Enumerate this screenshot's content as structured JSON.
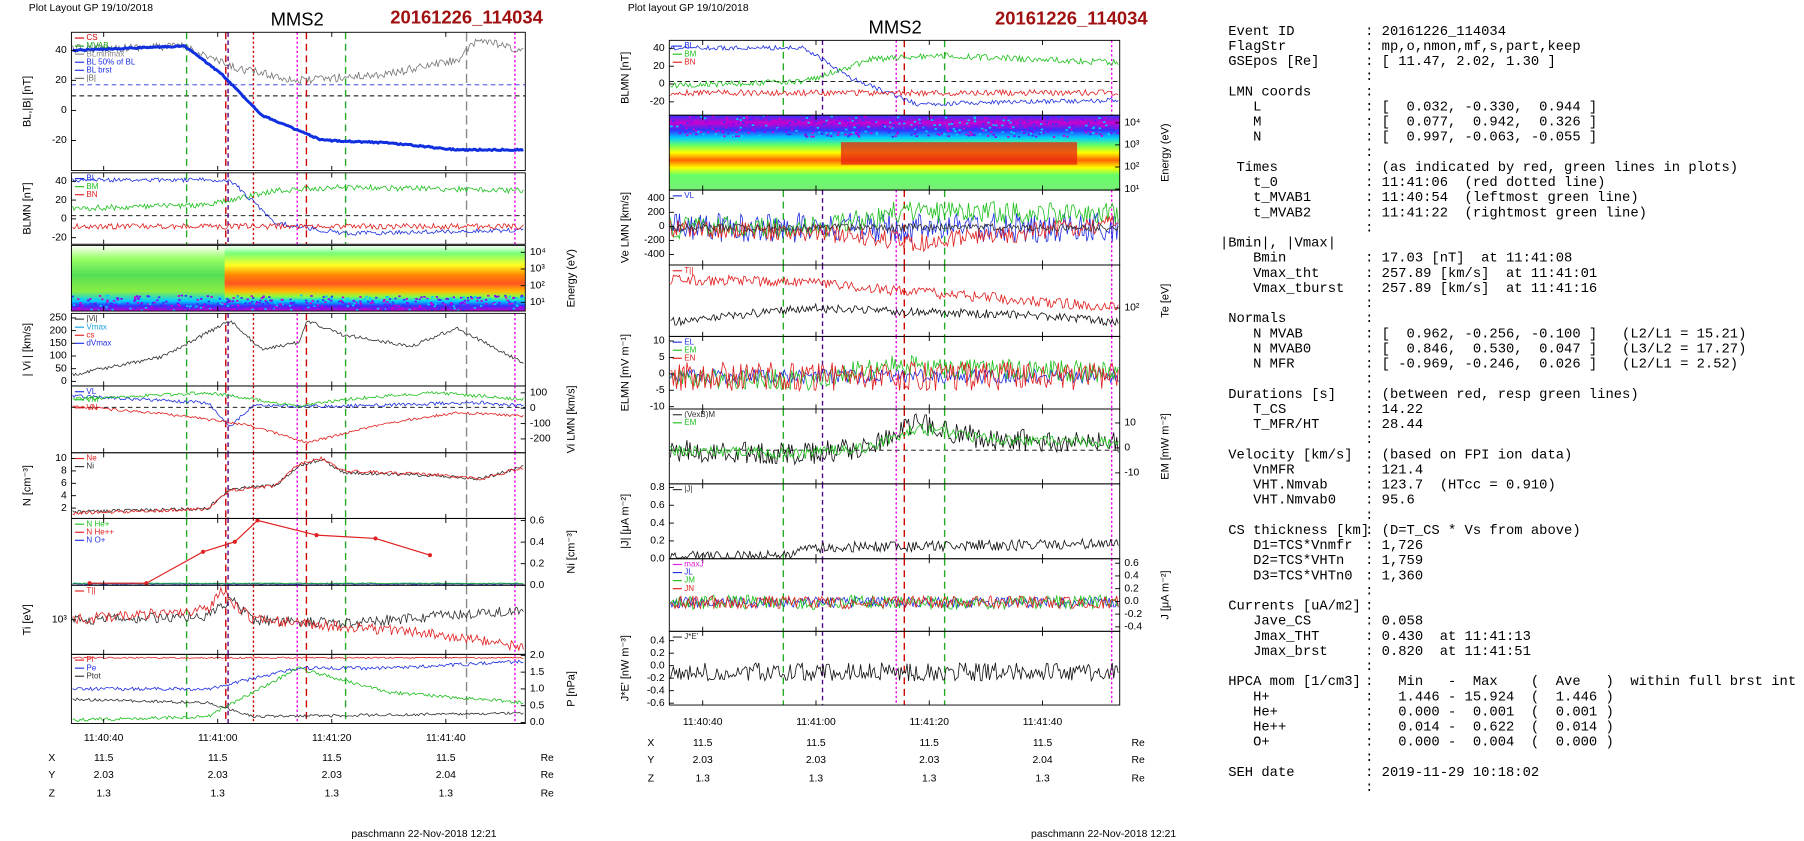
{
  "figures": [
    {
      "header": "Plot Layout GP 19/10/2018",
      "spacecraft": "MMS2",
      "event": "20161226_114034",
      "panels": [
        {
          "ylabel": "BL,|B| [nT]",
          "axis": "left",
          "ylim": [
            -40,
            52
          ],
          "yticks": [
            40,
            20,
            0,
            -20
          ],
          "legend": [
            {
              "name": "CS",
              "color": "#d00000"
            },
            {
              "name": "MVAB",
              "color": "#20a020"
            },
            {
              "name": "BLminmax",
              "color": "#888888"
            },
            {
              "name": "BL 50% of BL",
              "color": "#2030e0"
            },
            {
              "name": "BL brst",
              "color": "#2030e0"
            },
            {
              "name": "|B|",
              "color": "#666666"
            }
          ]
        },
        {
          "ylabel": "BLMN [nT]",
          "axis": "left",
          "ylim": [
            -27,
            49
          ],
          "yticks": [
            40,
            20,
            0,
            -20
          ],
          "legend": [
            {
              "name": "BL",
              "color": "#2030e0"
            },
            {
              "name": "BM",
              "color": "#20c020"
            },
            {
              "name": "BN",
              "color": "#e02020"
            }
          ]
        },
        {
          "ylabel": "Energy (eV)",
          "axis": "right",
          "kind": "spectrogram",
          "log": true,
          "ylim": [
            3,
            26000
          ],
          "yticks": [
            {
              "value": 10000,
              "label": "10⁴"
            },
            {
              "value": 1000,
              "label": "10³"
            },
            {
              "value": 100,
              "label": "10²"
            },
            {
              "value": 10,
              "label": "10¹"
            }
          ]
        },
        {
          "ylabel": "| Vi | [km/s]",
          "axis": "left",
          "ylim": [
            -18,
            268
          ],
          "yticks": [
            250,
            200,
            150,
            100,
            50,
            0
          ],
          "legend": [
            {
              "name": "|Vi|",
              "color": "#333333"
            },
            {
              "name": "Vmax",
              "color": "#20a0e0"
            },
            {
              "name": "cs",
              "color": "#e02020"
            },
            {
              "name": "dVmax",
              "color": "#2030e0"
            }
          ]
        },
        {
          "ylabel": "Vi LMN [km/s]",
          "axis": "right",
          "ylim": [
            -290,
            145
          ],
          "yticks": [
            100,
            0,
            -100,
            -200
          ],
          "legend": [
            {
              "name": "VL",
              "color": "#2030e0"
            },
            {
              "name": "VM",
              "color": "#20c020"
            },
            {
              "name": "VN",
              "color": "#e02020"
            }
          ]
        },
        {
          "ylabel": "N [cm⁻³]",
          "axis": "left",
          "ylim": [
            0.33,
            10.93
          ],
          "yticks": [
            10,
            8,
            6,
            4,
            2
          ],
          "legend": [
            {
              "name": "Ne",
              "color": "#e02020"
            },
            {
              "name": "Ni",
              "color": "#333333"
            }
          ]
        },
        {
          "ylabel": "Ni [cm⁻³]",
          "axis": "right",
          "ylim": [
            0,
            0.62
          ],
          "yticks": [
            0.6,
            0.4,
            0.2,
            {
              "value": 0,
              "label": "0.0"
            }
          ],
          "legend": [
            {
              "name": "N He+",
              "color": "#20c020"
            },
            {
              "name": "N He++",
              "color": "#e02020"
            },
            {
              "name": "N O+",
              "color": "#2030e0"
            }
          ]
        },
        {
          "ylabel": "Ti [eV]",
          "axis": "left",
          "log": true,
          "ylim": [
            300,
            3333
          ],
          "yticks": [
            {
              "value": 1000,
              "label": "10³"
            }
          ],
          "legend": [
            {
              "name": "T||",
              "color": "#e02020"
            }
          ]
        },
        {
          "ylabel": "P [nPa]",
          "axis": "right",
          "ylim": [
            -0.03,
            2.03
          ],
          "yticks": [
            {
              "value": 2,
              "label": "2.0"
            },
            1.5,
            {
              "value": 1,
              "label": "1.0"
            },
            0.5,
            {
              "value": 0,
              "label": "0.0"
            }
          ],
          "legend": [
            {
              "name": "Pi",
              "color": "#e02020"
            },
            {
              "name": "Pe",
              "color": "#2030e0"
            },
            {
              "name": "Ptot",
              "color": "#333333"
            }
          ]
        }
      ],
      "xticks": [
        "11:40:40",
        "11:41:00",
        "11:41:20",
        "11:41:40"
      ],
      "position_rows": [
        {
          "label": "X",
          "values": [
            "11.5",
            "11.5",
            "11.5",
            "11.5"
          ],
          "unit": "Re"
        },
        {
          "label": "Y",
          "values": [
            "2.03",
            "2.03",
            "2.03",
            "2.04"
          ],
          "unit": "Re"
        },
        {
          "label": "Z",
          "values": [
            "1.3",
            "1.3",
            "1.3",
            "1.3"
          ],
          "unit": "Re"
        }
      ],
      "footer": "paschmann 22-Nov-2018 12:21"
    },
    {
      "header": "Plot layout GP 19/10/2018",
      "spacecraft": "MMS2",
      "event": "20161226_114034",
      "panels": [
        {
          "ylabel": "BLMN [nT]",
          "axis": "left",
          "ylim": [
            -35,
            49
          ],
          "yticks": [
            40,
            20,
            0,
            -20
          ],
          "legend": [
            {
              "name": "BL",
              "color": "#2030e0"
            },
            {
              "name": "BM",
              "color": "#20c020"
            },
            {
              "name": "BN",
              "color": "#e02020"
            }
          ]
        },
        {
          "ylabel": "Energy (eV)",
          "axis": "right",
          "kind": "spectrogram",
          "log": true,
          "ylim": [
            9,
            22000
          ],
          "yticks": [
            {
              "value": 10000,
              "label": "10⁴"
            },
            {
              "value": 1000,
              "label": "10³"
            },
            {
              "value": 100,
              "label": "10²"
            },
            {
              "value": 10,
              "label": "10¹"
            }
          ]
        },
        {
          "ylabel": "Ve LMN [km/s]",
          "axis": "left",
          "ylim": [
            -550,
            517
          ],
          "yticks": [
            400,
            200,
            0,
            -200,
            -400
          ],
          "legend": [
            {
              "name": "VL",
              "color": "#2030e0"
            }
          ]
        },
        {
          "ylabel": "Te [eV]",
          "axis": "right",
          "log": true,
          "ylim": [
            40,
            400
          ],
          "yticks": [
            {
              "value": 100,
              "label": "10²"
            }
          ],
          "legend": [
            {
              "name": "T||",
              "color": "#e02020"
            }
          ]
        },
        {
          "ylabel": "ELMN [mV m⁻¹]",
          "axis": "left",
          "ylim": [
            -10.7,
            11.4
          ],
          "yticks": [
            10,
            5,
            0,
            -5,
            -10
          ],
          "legend": [
            {
              "name": "EL",
              "color": "#2030e0"
            },
            {
              "name": "EM",
              "color": "#20c020"
            },
            {
              "name": "EN",
              "color": "#e02020"
            }
          ]
        },
        {
          "ylabel": "EM [mW m⁻²]",
          "axis": "right",
          "ylim": [
            -14.4,
            15.6
          ],
          "yticks": [
            10,
            0,
            -10
          ],
          "legend": [
            {
              "name": "(VexB)M",
              "color": "#333333"
            },
            {
              "name": "EM",
              "color": "#20c020"
            }
          ]
        },
        {
          "ylabel": "|J| [μA m⁻²]",
          "axis": "left",
          "ylim": [
            0,
            0.84
          ],
          "yticks": [
            0.8,
            0.6,
            0.4,
            0.2,
            {
              "value": 0,
              "label": "0.0"
            }
          ],
          "legend": [
            {
              "name": "|J|",
              "color": "#333333"
            }
          ]
        },
        {
          "ylabel": "J [μA m⁻²]",
          "axis": "right",
          "ylim": [
            -0.47,
            0.67
          ],
          "yticks": [
            0.6,
            0.4,
            0.2,
            {
              "value": 0,
              "label": "0.0"
            },
            -0.2,
            -0.4
          ],
          "legend": [
            {
              "name": "maxJ",
              "color": "#e020e0"
            },
            {
              "name": "JL",
              "color": "#2030e0"
            },
            {
              "name": "JM",
              "color": "#20c020"
            },
            {
              "name": "JN",
              "color": "#e02020"
            }
          ]
        },
        {
          "ylabel": "J*E' [nW m⁻³]",
          "axis": "left",
          "ylim": [
            -0.63,
            0.55
          ],
          "yticks": [
            0.4,
            0.2,
            {
              "value": 0,
              "label": "0.0"
            },
            -0.2,
            -0.4,
            -0.6
          ],
          "legend": [
            {
              "name": "J*E'",
              "color": "#333333"
            }
          ]
        }
      ],
      "xticks": [
        "11:40:40",
        "11:41:00",
        "11:41:20",
        "11:41:40"
      ],
      "position_rows": [
        {
          "label": "X",
          "values": [
            "11.5",
            "11.5",
            "11.5",
            "11.5"
          ],
          "unit": "Re"
        },
        {
          "label": "Y",
          "values": [
            "2.03",
            "2.03",
            "2.03",
            "2.04"
          ],
          "unit": "Re"
        },
        {
          "label": "Z",
          "values": [
            "1.3",
            "1.3",
            "1.3",
            "1.3"
          ],
          "unit": "Re"
        }
      ],
      "footer": "paschmann 22-Nov-2018 12:21"
    }
  ],
  "summary": [
    {
      "key": " Event ID",
      "value": ": 20161226_114034"
    },
    {
      "key": " FlagStr",
      "value": ": mp,o,nmon,mf,s,part,keep"
    },
    {
      "key": " GSEpos [Re]",
      "value": ": [ 11.47, 2.02, 1.30 ]"
    },
    {
      "value": ":"
    },
    {
      "key": " LMN coords",
      "value": ":"
    },
    {
      "key": "    L",
      "value": ": [  0.032, -0.330,  0.944 ]"
    },
    {
      "key": "    M",
      "value": ": [  0.077,  0.942,  0.326 ]"
    },
    {
      "key": "    N",
      "value": ": [  0.997, -0.063, -0.055 ]"
    },
    {
      "value": ":"
    },
    {
      "key": "  Times",
      "value": ": (as indicated by red, green lines in plots)"
    },
    {
      "key": "    t_0",
      "value": ": 11:41:06  (red dotted line)"
    },
    {
      "key": "    t_MVAB1",
      "value": ": 11:40:54  (leftmost green line)"
    },
    {
      "key": "    t_MVAB2",
      "value": ": 11:41:22  (rightmost green line)"
    },
    {
      "value": ":"
    },
    {
      "key": "|Bmin|, |Vmax|"
    },
    {
      "key": "    Bmin",
      "value": ": 17.03 [nT]  at 11:41:08"
    },
    {
      "key": "    Vmax_tht",
      "value": ": 257.89 [km/s]  at 11:41:01"
    },
    {
      "key": "    Vmax_tburst",
      "value": ": 257.89 [km/s]  at 11:41:16"
    },
    {
      "value": ":"
    },
    {
      "key": " Normals",
      "value": ":"
    },
    {
      "key": "    N MVAB",
      "value": ": [  0.962, -0.256, -0.100 ]   (L2/L1 = 15.21)"
    },
    {
      "key": "    N MVAB0",
      "value": ": [  0.846,  0.530,  0.047 ]   (L3/L2 = 17.27)"
    },
    {
      "key": "    N MFR",
      "value": ": [ -0.969, -0.246,  0.026 ]   (L2/L1 = 2.52)"
    },
    {
      "value": ":"
    },
    {
      "key": " Durations [s]",
      "value": ": (between red, resp green lines)"
    },
    {
      "key": "    T_CS",
      "value": ": 14.22"
    },
    {
      "key": "    T_MFR/HT",
      "value": ": 28.44"
    },
    {
      "value": ":"
    },
    {
      "key": " Velocity [km/s]",
      "value": ": (based on FPI ion data)"
    },
    {
      "key": "    VnMFR",
      "value": ": 121.4"
    },
    {
      "key": "    VHT.Nmvab",
      "value": ": 123.7  (HTcc = 0.910)"
    },
    {
      "key": "    VHT.Nmvab0",
      "value": ": 95.6"
    },
    {
      "value": ":"
    },
    {
      "key": " CS thickness [km]",
      "value": ": (D=T_CS * Vs from above)"
    },
    {
      "key": "    D1=TCS*Vnmfr",
      "value": ": 1,726"
    },
    {
      "key": "    D2=TCS*VHTn",
      "value": ": 1,759"
    },
    {
      "key": "    D3=TCS*VHTn0",
      "value": ": 1,360"
    },
    {
      "value": ":"
    },
    {
      "key": " Currents [uA/m2]",
      "value": ":"
    },
    {
      "key": "    Jave_CS",
      "value": ": 0.058"
    },
    {
      "key": "    Jmax_THT",
      "value": ": 0.430  at 11:41:13"
    },
    {
      "key": "    Jmax_brst",
      "value": ": 0.820  at 11:41:51"
    },
    {
      "value": ":"
    },
    {
      "key": " HPCA mom [1/cm3]",
      "value": ":   Min   -  Max    (  Ave   )  within full brst int"
    },
    {
      "key": "    H+",
      "value": ":   1.446 - 15.924  (  1.446 )"
    },
    {
      "key": "    He+",
      "value": ":   0.000 -  0.001  (  0.001 )"
    },
    {
      "key": "    He++",
      "value": ":   0.014 -  0.622  (  0.014 )"
    },
    {
      "key": "    O+",
      "value": ":   0.000 -  0.004  (  0.000 )"
    },
    {
      "value": ":"
    },
    {
      "key": " SEH date",
      "value": ": 2019-11-29 10:18:02"
    },
    {
      "value": ":"
    }
  ]
}
